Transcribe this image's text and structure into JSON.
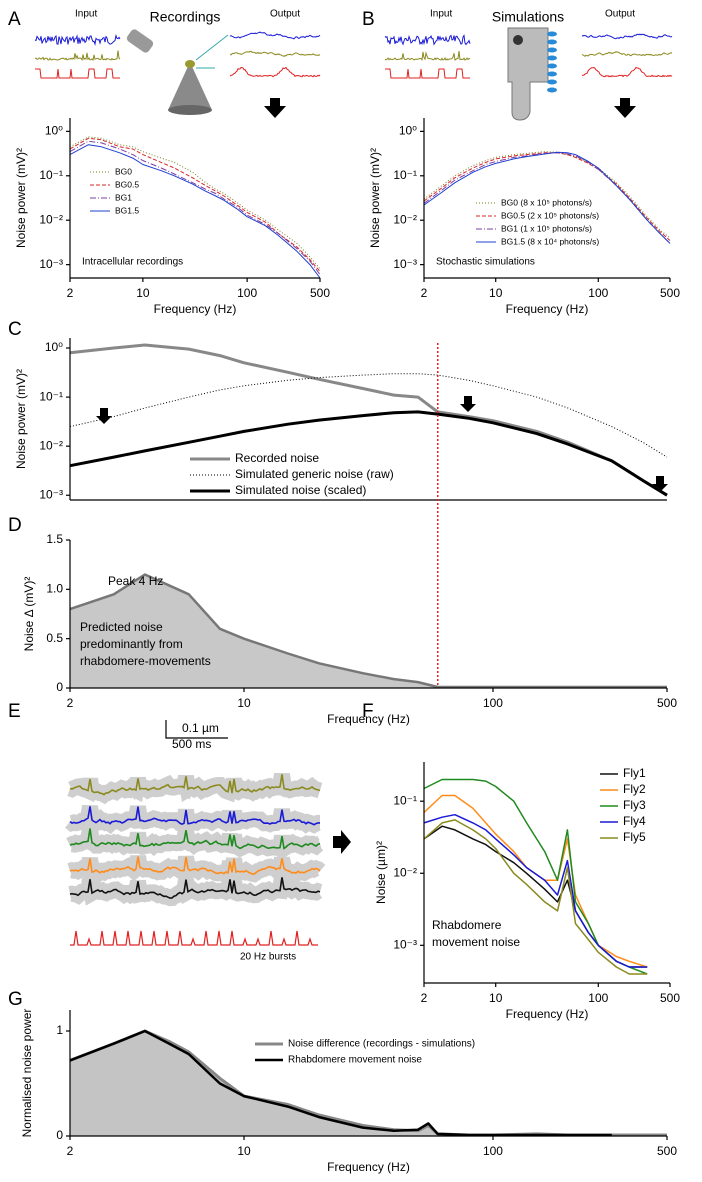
{
  "chart_data": [
    {
      "type": "line",
      "panel": "A",
      "input_label": "Input",
      "stage_label": "Recordings",
      "output_label": "Output",
      "annotation": "Intracellular recordings",
      "xlabel": "Frequency (Hz)",
      "ylabel": "Noise power (mV)²",
      "log_x": true,
      "log_y": true,
      "xlim": [
        2,
        500
      ],
      "ylim": [
        0.0005,
        2
      ],
      "xticks": [
        2,
        10,
        100,
        500
      ],
      "yticks": [
        {
          "value": 0.001,
          "label": "10⁻³"
        },
        {
          "value": 0.01,
          "label": "10⁻²"
        },
        {
          "value": 0.1,
          "label": "10⁻¹"
        },
        {
          "value": 1,
          "label": "10⁰"
        }
      ],
      "x": [
        2,
        3,
        4,
        6,
        8,
        10,
        15,
        20,
        30,
        40,
        50,
        60,
        80,
        100,
        150,
        200,
        300,
        400,
        500
      ],
      "series": [
        {
          "name": "BG0",
          "color": "#7b7b1e",
          "dash": "1,2",
          "width": 1,
          "values": [
            0.45,
            0.75,
            0.7,
            0.5,
            0.45,
            0.35,
            0.25,
            0.2,
            0.12,
            0.07,
            0.05,
            0.04,
            0.025,
            0.017,
            0.01,
            0.006,
            0.003,
            0.0015,
            0.0008
          ]
        },
        {
          "name": "BG0.5",
          "color": "#d62728",
          "dash": "4,2",
          "width": 1,
          "values": [
            0.4,
            0.7,
            0.65,
            0.45,
            0.4,
            0.3,
            0.2,
            0.15,
            0.09,
            0.06,
            0.045,
            0.035,
            0.022,
            0.015,
            0.009,
            0.005,
            0.0025,
            0.0013,
            0.0007
          ]
        },
        {
          "name": "BG1",
          "color": "#7b3fa0",
          "dash": "6,2,1,2",
          "width": 1,
          "values": [
            0.35,
            0.6,
            0.55,
            0.4,
            0.3,
            0.22,
            0.15,
            0.11,
            0.07,
            0.05,
            0.04,
            0.03,
            0.02,
            0.013,
            0.008,
            0.005,
            0.0023,
            0.0012,
            0.0006
          ]
        },
        {
          "name": "BG1.5",
          "color": "#1f3fd0",
          "dash": "none",
          "width": 1,
          "values": [
            0.3,
            0.5,
            0.45,
            0.33,
            0.25,
            0.18,
            0.13,
            0.1,
            0.065,
            0.045,
            0.035,
            0.028,
            0.018,
            0.012,
            0.0075,
            0.0045,
            0.002,
            0.001,
            0.0005
          ]
        }
      ]
    },
    {
      "type": "line",
      "panel": "B",
      "input_label": "Input",
      "stage_label": "Simulations",
      "output_label": "Output",
      "annotation": "Stochastic simulations",
      "xlabel": "Frequency (Hz)",
      "ylabel": "Noise power (mV)²",
      "log_x": true,
      "log_y": true,
      "xlim": [
        2,
        500
      ],
      "ylim": [
        0.0005,
        2
      ],
      "xticks": [
        2,
        10,
        100,
        500
      ],
      "yticks": [
        {
          "value": 0.001,
          "label": "10⁻³"
        },
        {
          "value": 0.01,
          "label": "10⁻²"
        },
        {
          "value": 0.1,
          "label": "10⁻¹"
        },
        {
          "value": 1,
          "label": "10⁰"
        }
      ],
      "x": [
        2,
        3,
        4,
        6,
        8,
        10,
        15,
        20,
        30,
        40,
        50,
        60,
        80,
        100,
        150,
        200,
        300,
        400,
        500
      ],
      "series": [
        {
          "name": "BG0 (8 x 10⁵ photons/s)",
          "color": "#7b7b1e",
          "dash": "1,2",
          "width": 1,
          "values": [
            0.03,
            0.06,
            0.1,
            0.17,
            0.22,
            0.26,
            0.3,
            0.32,
            0.35,
            0.34,
            0.3,
            0.27,
            0.2,
            0.15,
            0.07,
            0.035,
            0.012,
            0.006,
            0.004
          ]
        },
        {
          "name": "BG0.5 (2 x 10⁵ photons/s)",
          "color": "#d62728",
          "dash": "4,2",
          "width": 1,
          "values": [
            0.027,
            0.054,
            0.09,
            0.15,
            0.2,
            0.24,
            0.28,
            0.3,
            0.33,
            0.33,
            0.3,
            0.26,
            0.19,
            0.14,
            0.065,
            0.032,
            0.011,
            0.0055,
            0.0035
          ]
        },
        {
          "name": "BG1 (1 x 10⁵ photons/s)",
          "color": "#7b3fa0",
          "dash": "6,2,1,2",
          "width": 1,
          "values": [
            0.024,
            0.048,
            0.08,
            0.13,
            0.18,
            0.21,
            0.26,
            0.28,
            0.32,
            0.33,
            0.31,
            0.28,
            0.2,
            0.14,
            0.06,
            0.03,
            0.01,
            0.005,
            0.003
          ]
        },
        {
          "name": "BG1.5 (8 x 10⁴ photons/s)",
          "color": "#1f3fd0",
          "dash": "none",
          "width": 1,
          "values": [
            0.022,
            0.043,
            0.07,
            0.12,
            0.16,
            0.19,
            0.24,
            0.27,
            0.31,
            0.34,
            0.33,
            0.3,
            0.21,
            0.15,
            0.06,
            0.03,
            0.01,
            0.005,
            0.003
          ]
        }
      ]
    },
    {
      "type": "line",
      "panel": "C",
      "ylabel": "Noise power (mV)²",
      "log_x": true,
      "log_y": true,
      "xlim": [
        2,
        500
      ],
      "ylim": [
        0.0008,
        1.6
      ],
      "vline": 60,
      "yticks": [
        {
          "value": 0.001,
          "label": "10⁻³"
        },
        {
          "value": 0.01,
          "label": "10⁻²"
        },
        {
          "value": 0.1,
          "label": "10⁻¹"
        },
        {
          "value": 1,
          "label": "10⁰"
        }
      ],
      "x": [
        2,
        3,
        4,
        6,
        8,
        10,
        15,
        20,
        30,
        40,
        50,
        60,
        80,
        100,
        150,
        200,
        300,
        400,
        500
      ],
      "series": [
        {
          "name": "Recorded noise",
          "color": "#888888",
          "dash": "none",
          "width": 3,
          "values": [
            0.8,
            1.0,
            1.15,
            0.95,
            0.7,
            0.5,
            0.32,
            0.23,
            0.15,
            0.11,
            0.1,
            0.05,
            0.04,
            0.033,
            0.02,
            0.012,
            0.005,
            0.002,
            0.001
          ]
        },
        {
          "name": "Simulated generic noise (raw)",
          "color": "#000000",
          "dash": "1,2",
          "width": 1,
          "values": [
            0.025,
            0.04,
            0.06,
            0.1,
            0.14,
            0.17,
            0.22,
            0.25,
            0.28,
            0.3,
            0.3,
            0.28,
            0.22,
            0.17,
            0.1,
            0.06,
            0.025,
            0.012,
            0.006
          ]
        },
        {
          "name": "Simulated noise (scaled)",
          "color": "#000000",
          "dash": "none",
          "width": 3,
          "values": [
            0.004,
            0.006,
            0.008,
            0.012,
            0.016,
            0.02,
            0.028,
            0.034,
            0.042,
            0.048,
            0.05,
            0.045,
            0.037,
            0.03,
            0.018,
            0.011,
            0.005,
            0.002,
            0.001
          ]
        }
      ]
    },
    {
      "type": "area",
      "panel": "D",
      "peak_label": "Peak 4 Hz",
      "annotation": [
        "Predicted noise",
        "predominantly from",
        "rhabdomere-movements"
      ],
      "xlabel": "Frequency (Hz)",
      "ylabel": "Noise Δ (mV)²",
      "log_x": true,
      "log_y": false,
      "xlim": [
        2,
        500
      ],
      "ylim": [
        0,
        1.5
      ],
      "xticks": [
        2,
        10,
        100,
        500
      ],
      "yticks": [
        0,
        0.5,
        {
          "value": 1,
          "label": "1.0"
        },
        1.5
      ],
      "x": [
        2,
        3,
        4,
        6,
        8,
        10,
        15,
        20,
        30,
        40,
        50,
        60,
        80,
        100,
        150,
        200,
        300,
        400,
        500
      ],
      "series": [
        {
          "color": "#777777",
          "fill": "#c8c8c8",
          "dash": "none",
          "width": 2.5,
          "values": [
            0.8,
            0.95,
            1.15,
            0.95,
            0.6,
            0.5,
            0.35,
            0.25,
            0.15,
            0.09,
            0.06,
            0.01,
            0.01,
            0.01,
            0.01,
            0.01,
            0.01,
            0.01,
            0.01
          ]
        }
      ]
    },
    {
      "type": "line",
      "panel": "F",
      "annotation": [
        "Rhabdomere",
        "movement noise"
      ],
      "xlabel": "Frequency (Hz)",
      "ylabel": "Noise (µm)²",
      "log_x": true,
      "log_y": true,
      "xlim": [
        2,
        500
      ],
      "ylim": [
        0.0003,
        0.35
      ],
      "xticks": [
        2,
        10,
        100,
        500
      ],
      "yticks": [
        {
          "value": 0.001,
          "label": "10⁻³"
        },
        {
          "value": 0.01,
          "label": "10⁻²"
        },
        {
          "value": 0.1,
          "label": "10⁻¹"
        }
      ],
      "x": [
        2,
        3,
        4,
        6,
        8,
        10,
        15,
        20,
        30,
        40,
        50,
        60,
        80,
        100,
        150,
        200,
        300
      ],
      "series": [
        {
          "name": "Fly1",
          "color": "#111111",
          "dash": "none",
          "width": 1.5,
          "values": [
            0.03,
            0.045,
            0.04,
            0.03,
            0.025,
            0.02,
            0.014,
            0.01,
            0.006,
            0.004,
            0.008,
            0.003,
            0.0015,
            0.001,
            0.0006,
            0.0005,
            0.0005
          ]
        },
        {
          "name": "Fly2",
          "color": "#ff8c1a",
          "dash": "none",
          "width": 1.5,
          "values": [
            0.07,
            0.12,
            0.12,
            0.08,
            0.05,
            0.035,
            0.02,
            0.012,
            0.008,
            0.008,
            0.03,
            0.005,
            0.002,
            0.001,
            0.0007,
            0.0006,
            0.0005
          ]
        },
        {
          "name": "Fly3",
          "color": "#1f8a1f",
          "dash": "none",
          "width": 1.5,
          "values": [
            0.15,
            0.2,
            0.2,
            0.2,
            0.19,
            0.16,
            0.1,
            0.05,
            0.02,
            0.008,
            0.04,
            0.004,
            0.002,
            0.001,
            0.0006,
            0.0005,
            0.0004
          ]
        },
        {
          "name": "Fly4",
          "color": "#1a1ad6",
          "dash": "none",
          "width": 1.5,
          "values": [
            0.05,
            0.06,
            0.065,
            0.05,
            0.04,
            0.03,
            0.018,
            0.012,
            0.008,
            0.005,
            0.015,
            0.003,
            0.0015,
            0.001,
            0.0006,
            0.0005,
            0.0005
          ]
        },
        {
          "name": "Fly5",
          "color": "#8a8a1f",
          "dash": "none",
          "width": 1.5,
          "values": [
            0.03,
            0.05,
            0.055,
            0.04,
            0.03,
            0.022,
            0.01,
            0.007,
            0.004,
            0.003,
            0.012,
            0.002,
            0.0012,
            0.0008,
            0.0005,
            0.0004,
            0.0004
          ]
        }
      ]
    },
    {
      "type": "area",
      "panel": "G",
      "xlabel": "Frequency (Hz)",
      "ylabel": "Normalised noise power",
      "log_x": true,
      "log_y": false,
      "xlim": [
        2,
        500
      ],
      "ylim": [
        0,
        1.2
      ],
      "xticks": [
        2,
        10,
        100,
        500
      ],
      "yticks": [
        0,
        1
      ],
      "x": [
        2,
        3,
        4,
        5,
        6,
        8,
        10,
        15,
        20,
        30,
        40,
        50,
        55,
        60,
        80,
        100,
        150,
        200,
        300,
        500
      ],
      "series": [
        {
          "name": "Noise difference (recordings - simulations)",
          "color": "#888888",
          "fill": "#c4c4c4",
          "dash": "none",
          "width": 3,
          "values": [
            0.72,
            0.88,
            1.0,
            0.9,
            0.8,
            0.55,
            0.38,
            0.3,
            0.2,
            0.1,
            0.06,
            0.05,
            0.1,
            0.02,
            0.01,
            0.01,
            0.02,
            0.01,
            0.01,
            0.01
          ]
        },
        {
          "name": "Rhabdomere movement noise",
          "color": "#000000",
          "dash": "none",
          "width": 2.5,
          "values": [
            0.72,
            0.88,
            1.0,
            0.88,
            0.78,
            0.5,
            0.38,
            0.28,
            0.18,
            0.08,
            0.05,
            0.06,
            0.12,
            0.02,
            0.01,
            0.01,
            0.01,
            0.01,
            0.01,
            null
          ]
        }
      ]
    }
  ],
  "panel_e": {
    "panel": "E",
    "scale_y": "0.1 µm",
    "scale_x": "500 ms",
    "stimulus": "20 Hz bursts"
  }
}
